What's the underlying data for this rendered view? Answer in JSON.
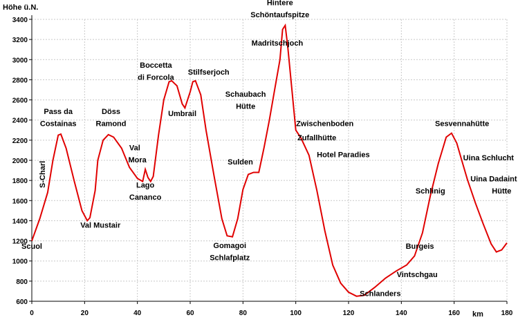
{
  "chart_data": {
    "type": "line",
    "ylabel": "Höhe ü.N.",
    "xlabel": "km",
    "xlim": [
      0,
      180
    ],
    "ylim": [
      600,
      3400
    ],
    "xticks": [
      0,
      20,
      40,
      60,
      80,
      100,
      120,
      140,
      160,
      180
    ],
    "yticks": [
      600,
      800,
      1000,
      1200,
      1400,
      1600,
      1800,
      2000,
      2200,
      2400,
      2600,
      2800,
      3000,
      3200,
      3400
    ],
    "grid": true,
    "line_color": "#e00000",
    "x": [
      0,
      3,
      6,
      8,
      10,
      11,
      13,
      16,
      19,
      21,
      22,
      24,
      25,
      27,
      29,
      31,
      34,
      37,
      40,
      42,
      43,
      44,
      45,
      46,
      48,
      50,
      52,
      53,
      55,
      57,
      58,
      60,
      61,
      62,
      64,
      66,
      69,
      72,
      74,
      76,
      78,
      80,
      82,
      84,
      86,
      88,
      90,
      92,
      94,
      95,
      96,
      97,
      98,
      100,
      102,
      105,
      108,
      111,
      114,
      117,
      120,
      123,
      126,
      130,
      134,
      138,
      142,
      145,
      148,
      151,
      154,
      157,
      159,
      161,
      163,
      165,
      168,
      171,
      174,
      176,
      178,
      180
    ],
    "y": [
      1200,
      1420,
      1680,
      2000,
      2250,
      2260,
      2120,
      1800,
      1500,
      1400,
      1430,
      1700,
      2000,
      2200,
      2255,
      2230,
      2120,
      1930,
      1820,
      1790,
      1910,
      1830,
      1790,
      1840,
      2250,
      2600,
      2780,
      2790,
      2740,
      2560,
      2520,
      2680,
      2780,
      2790,
      2650,
      2300,
      1850,
      1420,
      1250,
      1240,
      1420,
      1710,
      1860,
      1880,
      1880,
      2130,
      2400,
      2700,
      3000,
      3300,
      3340,
      3120,
      2850,
      2300,
      2220,
      2050,
      1700,
      1300,
      960,
      780,
      690,
      650,
      660,
      740,
      830,
      900,
      960,
      1050,
      1280,
      1650,
      1970,
      2230,
      2270,
      2170,
      1990,
      1810,
      1580,
      1370,
      1170,
      1090,
      1110,
      1180
    ],
    "annotations": [
      {
        "text": "Scuol",
        "x": 0,
        "y": 1120
      },
      {
        "text": "S-Charl",
        "x": 5,
        "y": 1860,
        "rotate": true
      },
      {
        "text": "Pass da",
        "x": 10,
        "y": 2460
      },
      {
        "text": "Costainas",
        "x": 10,
        "y": 2340
      },
      {
        "text": "Val Mustair",
        "x": 26,
        "y": 1330
      },
      {
        "text": "Döss",
        "x": 30,
        "y": 2460
      },
      {
        "text": "Ramond",
        "x": 30,
        "y": 2340
      },
      {
        "text": "Val",
        "x": 39,
        "y": 2100
      },
      {
        "text": "Mora",
        "x": 40,
        "y": 1980
      },
      {
        "text": "Lago",
        "x": 43,
        "y": 1730
      },
      {
        "text": "Cananco",
        "x": 43,
        "y": 1610
      },
      {
        "text": "Boccetta",
        "x": 47,
        "y": 2920
      },
      {
        "text": "di Forcola",
        "x": 47,
        "y": 2800
      },
      {
        "text": "Stilfserjoch",
        "x": 67,
        "y": 2850
      },
      {
        "text": "Umbrail",
        "x": 57,
        "y": 2440
      },
      {
        "text": "Schaubach",
        "x": 81,
        "y": 2630
      },
      {
        "text": "Hütte",
        "x": 81,
        "y": 2510
      },
      {
        "text": "Sulden",
        "x": 79,
        "y": 1960
      },
      {
        "text": "Gomagoi",
        "x": 75,
        "y": 1130
      },
      {
        "text": "Schlafplatz",
        "x": 75,
        "y": 1010
      },
      {
        "text": "Hintere",
        "x": 94,
        "y": 3540
      },
      {
        "text": "Schöntaufspitze",
        "x": 94,
        "y": 3420
      },
      {
        "text": "Madritschjoch",
        "x": 93,
        "y": 3140
      },
      {
        "text": "Zwischenboden",
        "x": 111,
        "y": 2340
      },
      {
        "text": "Zufallhütte",
        "x": 108,
        "y": 2200
      },
      {
        "text": "Hotel Paradies",
        "x": 118,
        "y": 2030
      },
      {
        "text": "Schlanders",
        "x": 132,
        "y": 650
      },
      {
        "text": "Vintschgau",
        "x": 146,
        "y": 840
      },
      {
        "text": "Burgeis",
        "x": 147,
        "y": 1120
      },
      {
        "text": "Schlinig",
        "x": 151,
        "y": 1670
      },
      {
        "text": "Sesvennahütte",
        "x": 163,
        "y": 2340
      },
      {
        "text": "Uina Schlucht",
        "x": 173,
        "y": 2000
      },
      {
        "text": "Uina Dadaint",
        "x": 175,
        "y": 1790
      },
      {
        "text": "Hütte",
        "x": 178,
        "y": 1670
      }
    ]
  }
}
